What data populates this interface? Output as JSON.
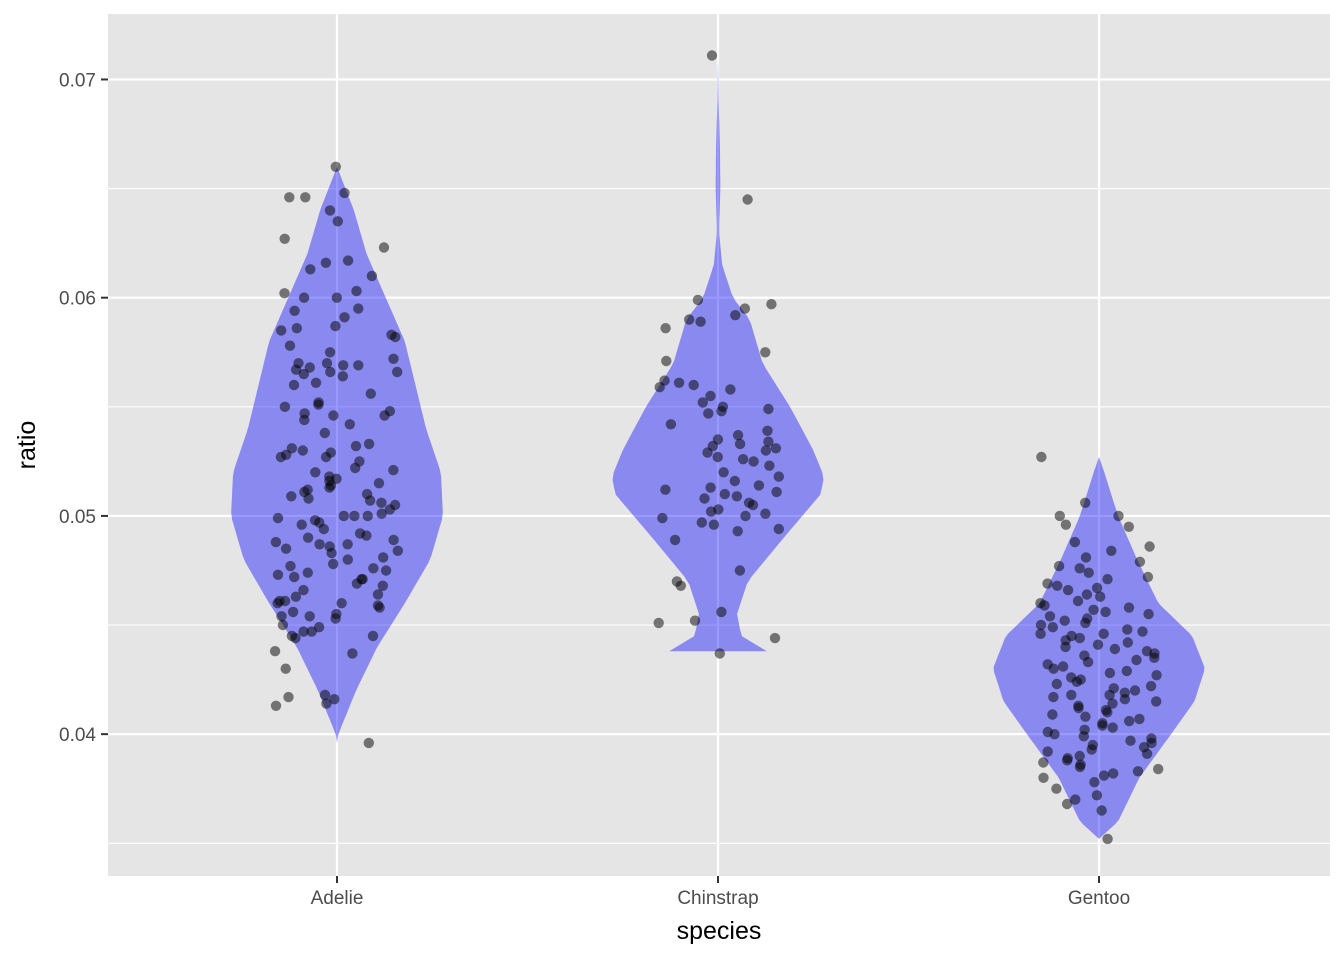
{
  "chart_data": {
    "type": "violin",
    "title": "",
    "xlabel": "species",
    "ylabel": "ratio",
    "categories": [
      "Adelie",
      "Chinstrap",
      "Gentoo"
    ],
    "ylim": [
      0.0335,
      0.073
    ],
    "yticks": [
      0.04,
      0.05,
      0.06,
      0.07
    ],
    "ytick_labels": [
      "0.04",
      "0.05",
      "0.06",
      "0.07"
    ],
    "grid": true,
    "colors": {
      "panel_background": "#e5e5e5",
      "grid": "#ffffff",
      "violin_fill": "#0000ff",
      "violin_alpha": 0.4,
      "point": "#000000",
      "point_alpha": 0.5
    },
    "violins": [
      {
        "species": "Adelie",
        "min": 0.0396,
        "max": 0.066,
        "profile": [
          [
            0.0396,
            0.0
          ],
          [
            0.04,
            0.012
          ],
          [
            0.042,
            0.18
          ],
          [
            0.044,
            0.38
          ],
          [
            0.046,
            0.64
          ],
          [
            0.048,
            0.88
          ],
          [
            0.05,
            1.0
          ],
          [
            0.052,
            0.98
          ],
          [
            0.054,
            0.84
          ],
          [
            0.056,
            0.74
          ],
          [
            0.058,
            0.64
          ],
          [
            0.06,
            0.46
          ],
          [
            0.062,
            0.28
          ],
          [
            0.064,
            0.16
          ],
          [
            0.066,
            0.0
          ]
        ]
      },
      {
        "species": "Chinstrap",
        "min": 0.0438,
        "max": 0.0711,
        "profile": [
          [
            0.0438,
            0.46
          ],
          [
            0.0445,
            0.22
          ],
          [
            0.0455,
            0.18
          ],
          [
            0.047,
            0.28
          ],
          [
            0.049,
            0.62
          ],
          [
            0.051,
            0.97
          ],
          [
            0.0518,
            1.0
          ],
          [
            0.053,
            0.9
          ],
          [
            0.055,
            0.68
          ],
          [
            0.057,
            0.42
          ],
          [
            0.059,
            0.3
          ],
          [
            0.06,
            0.14
          ],
          [
            0.0615,
            0.04
          ],
          [
            0.063,
            0.01
          ],
          [
            0.065,
            0.022
          ],
          [
            0.067,
            0.018
          ],
          [
            0.069,
            0.006
          ],
          [
            0.0711,
            0.0
          ]
        ]
      },
      {
        "species": "Gentoo",
        "min": 0.0352,
        "max": 0.0527,
        "profile": [
          [
            0.0352,
            0.0
          ],
          [
            0.036,
            0.18
          ],
          [
            0.038,
            0.38
          ],
          [
            0.04,
            0.68
          ],
          [
            0.0415,
            0.9
          ],
          [
            0.043,
            1.0
          ],
          [
            0.0445,
            0.88
          ],
          [
            0.046,
            0.56
          ],
          [
            0.048,
            0.36
          ],
          [
            0.05,
            0.18
          ],
          [
            0.052,
            0.05
          ],
          [
            0.0527,
            0.0
          ]
        ]
      }
    ],
    "points": {
      "Adelie": [
        0.066,
        0.0648,
        0.0646,
        0.0646,
        0.064,
        0.0635,
        0.0627,
        0.0623,
        0.0617,
        0.0616,
        0.0613,
        0.061,
        0.0603,
        0.0602,
        0.06,
        0.06,
        0.0595,
        0.0594,
        0.0591,
        0.0587,
        0.0586,
        0.0585,
        0.0583,
        0.0582,
        0.0578,
        0.0575,
        0.0572,
        0.057,
        0.057,
        0.0569,
        0.0569,
        0.0568,
        0.0567,
        0.0566,
        0.0566,
        0.0565,
        0.0564,
        0.0561,
        0.056,
        0.0556,
        0.0552,
        0.0551,
        0.055,
        0.0548,
        0.0547,
        0.0546,
        0.0546,
        0.0544,
        0.0542,
        0.0538,
        0.0533,
        0.0532,
        0.0531,
        0.053,
        0.0529,
        0.0528,
        0.0527,
        0.0527,
        0.0525,
        0.0522,
        0.0521,
        0.052,
        0.0518,
        0.0517,
        0.0516,
        0.0515,
        0.0514,
        0.0513,
        0.0512,
        0.0511,
        0.051,
        0.0509,
        0.0508,
        0.0507,
        0.0506,
        0.0505,
        0.0503,
        0.0501,
        0.05,
        0.05,
        0.05,
        0.0499,
        0.0498,
        0.0497,
        0.0496,
        0.0494,
        0.0492,
        0.0491,
        0.049,
        0.0489,
        0.0488,
        0.0487,
        0.0487,
        0.0486,
        0.0485,
        0.0484,
        0.0483,
        0.0481,
        0.048,
        0.0478,
        0.0477,
        0.0476,
        0.0475,
        0.0474,
        0.0473,
        0.0472,
        0.0471,
        0.0471,
        0.0469,
        0.0468,
        0.0466,
        0.0464,
        0.0463,
        0.0461,
        0.0461,
        0.046,
        0.046,
        0.0459,
        0.0458,
        0.0456,
        0.0455,
        0.0454,
        0.0454,
        0.0453,
        0.045,
        0.0449,
        0.0447,
        0.0447,
        0.0445,
        0.0445,
        0.0444,
        0.0438,
        0.0437,
        0.043,
        0.0418,
        0.0417,
        0.0416,
        0.0414,
        0.0413,
        0.0396
      ],
      "Chinstrap": [
        0.0711,
        0.0645,
        0.0599,
        0.0597,
        0.0595,
        0.0592,
        0.059,
        0.0589,
        0.0586,
        0.0575,
        0.0571,
        0.0562,
        0.0561,
        0.056,
        0.0559,
        0.0558,
        0.0555,
        0.0552,
        0.055,
        0.0549,
        0.0548,
        0.0547,
        0.0542,
        0.0539,
        0.0537,
        0.0535,
        0.0534,
        0.0533,
        0.0532,
        0.0531,
        0.053,
        0.0529,
        0.0527,
        0.0526,
        0.0525,
        0.0523,
        0.052,
        0.0518,
        0.0516,
        0.0514,
        0.0513,
        0.0512,
        0.0511,
        0.051,
        0.0509,
        0.0508,
        0.0506,
        0.0505,
        0.0503,
        0.0502,
        0.0501,
        0.05,
        0.0499,
        0.0497,
        0.0496,
        0.0494,
        0.0493,
        0.0489,
        0.0475,
        0.047,
        0.0468,
        0.0456,
        0.0452,
        0.0451,
        0.0444,
        0.0437
      ],
      "Gentoo": [
        0.0527,
        0.0506,
        0.05,
        0.05,
        0.0496,
        0.0495,
        0.0488,
        0.0486,
        0.0484,
        0.0481,
        0.0479,
        0.0477,
        0.0476,
        0.0474,
        0.0472,
        0.0471,
        0.0469,
        0.0468,
        0.0467,
        0.0466,
        0.0464,
        0.0463,
        0.0461,
        0.046,
        0.0459,
        0.0458,
        0.0457,
        0.0456,
        0.0455,
        0.0454,
        0.0453,
        0.0452,
        0.0451,
        0.045,
        0.0449,
        0.0448,
        0.0447,
        0.0446,
        0.0446,
        0.0445,
        0.0444,
        0.0443,
        0.0442,
        0.0441,
        0.044,
        0.0439,
        0.0438,
        0.0437,
        0.0436,
        0.0435,
        0.0434,
        0.0433,
        0.0432,
        0.0431,
        0.043,
        0.0429,
        0.0428,
        0.0427,
        0.0426,
        0.0425,
        0.0424,
        0.0423,
        0.0422,
        0.0421,
        0.042,
        0.0419,
        0.0418,
        0.0418,
        0.0417,
        0.0416,
        0.0415,
        0.0414,
        0.0413,
        0.0412,
        0.0411,
        0.041,
        0.0409,
        0.0408,
        0.0407,
        0.0406,
        0.0405,
        0.0404,
        0.0403,
        0.0402,
        0.0401,
        0.04,
        0.0399,
        0.0398,
        0.0397,
        0.0396,
        0.0395,
        0.0394,
        0.0393,
        0.0392,
        0.0391,
        0.039,
        0.0389,
        0.0388,
        0.0387,
        0.0386,
        0.0385,
        0.0384,
        0.0383,
        0.0382,
        0.0381,
        0.038,
        0.0378,
        0.0375,
        0.0372,
        0.037,
        0.0368,
        0.0365,
        0.0352
      ]
    }
  }
}
